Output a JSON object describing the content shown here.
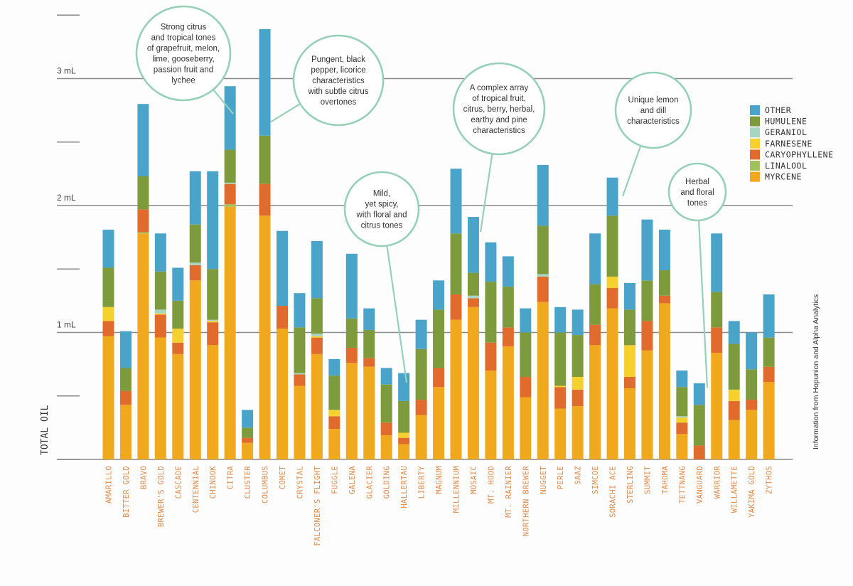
{
  "chart_data": {
    "type": "bar",
    "stacked": true,
    "ylabel": "TOTAL OIL",
    "ylim": [
      0,
      3.5
    ],
    "ytick_values": [
      1,
      2,
      3
    ],
    "ytick_labels": [
      "1 mL",
      "2 mL",
      "3 mL"
    ],
    "source": "Information from Hopunion and Alpha Analytics",
    "legend_position": "right",
    "components": [
      "Myrcene",
      "Linalool",
      "Caryophyllene",
      "Farnesene",
      "Geraniol",
      "Humulene",
      "Other"
    ],
    "legend": [
      {
        "key": "other",
        "label": "OTHER"
      },
      {
        "key": "humulene",
        "label": "HUMULENE"
      },
      {
        "key": "geraniol",
        "label": "GERANIOL"
      },
      {
        "key": "farnesene",
        "label": "FARNESENE"
      },
      {
        "key": "caryophyllene",
        "label": "CARYOPHYLLENE"
      },
      {
        "key": "linalool",
        "label": "LINALOOL"
      },
      {
        "key": "myrcene",
        "label": "MYRCENE"
      }
    ],
    "colors": {
      "myrcene": "#f0a81c",
      "linalool": "#a3c05e",
      "caryophyllene": "#e06b2c",
      "farnesene": "#f4d12e",
      "geraniol": "#a8d4c4",
      "humulene": "#7d9a3c",
      "other": "#4aa3c8"
    },
    "categories": [
      "AMARILLO",
      "BITTER GOLD",
      "BRAVO",
      "BREWER'S GOLD",
      "CASCADE",
      "CENTENNIAL",
      "CHINOOK",
      "CITRA",
      "CLUSTER",
      "COLUMBUS",
      "COMET",
      "CRYSTAL",
      "FALCONER'S FLIGHT",
      "FUGGLE",
      "GALENA",
      "GLACIER",
      "GOLDING",
      "HALLERTAU",
      "LIBERTY",
      "MAGNUM",
      "MILLENNIUM",
      "MOSAIC",
      "MT. HOOD",
      "MT. RAINIER",
      "NORTHERN BREWER",
      "NUGGET",
      "PERLE",
      "SAAZ",
      "SIMCOE",
      "SORACHI ACE",
      "STERLING",
      "SUMMIT",
      "TAHOMA",
      "TETTNANG",
      "VANGUARD",
      "WARRIOR",
      "WILLAMETTE",
      "YAKIMA GOLD",
      "ZYTHOS"
    ],
    "series": [
      {
        "name": "Myrcene",
        "key": "myrcene",
        "values": [
          0.97,
          0.43,
          1.78,
          0.96,
          0.83,
          1.41,
          0.9,
          1.99,
          0.13,
          1.92,
          1.03,
          0.58,
          0.83,
          0.24,
          0.76,
          0.73,
          0.19,
          0.12,
          0.35,
          0.57,
          1.1,
          1.2,
          0.7,
          0.89,
          0.49,
          1.24,
          0.4,
          0.42,
          0.9,
          1.19,
          0.56,
          0.86,
          1.23,
          0.2,
          0.0,
          0.84,
          0.31,
          0.39,
          0.61
        ]
      },
      {
        "name": "Linalool",
        "key": "linalool",
        "values": [
          0.0,
          0.0,
          0.01,
          0.0,
          0.0,
          0.0,
          0.0,
          0.02,
          0.0,
          0.0,
          0.0,
          0.0,
          0.0,
          0.0,
          0.0,
          0.0,
          0.0,
          0.0,
          0.0,
          0.0,
          0.0,
          0.0,
          0.0,
          0.0,
          0.0,
          0.0,
          0.0,
          0.0,
          0.0,
          0.0,
          0.0,
          0.0,
          0.0,
          0.0,
          0.0,
          0.0,
          0.0,
          0.0,
          0.0
        ]
      },
      {
        "name": "Caryophyllene",
        "key": "caryophyllene",
        "values": [
          0.12,
          0.11,
          0.18,
          0.18,
          0.09,
          0.12,
          0.18,
          0.16,
          0.04,
          0.25,
          0.18,
          0.09,
          0.13,
          0.1,
          0.12,
          0.07,
          0.1,
          0.05,
          0.12,
          0.15,
          0.2,
          0.07,
          0.22,
          0.15,
          0.16,
          0.2,
          0.17,
          0.13,
          0.16,
          0.16,
          0.09,
          0.23,
          0.06,
          0.09,
          0.11,
          0.2,
          0.15,
          0.08,
          0.12
        ]
      },
      {
        "name": "Farnesene",
        "key": "farnesene",
        "values": [
          0.11,
          0.0,
          0.0,
          0.01,
          0.11,
          0.0,
          0.01,
          0.0,
          0.0,
          0.0,
          0.0,
          0.0,
          0.01,
          0.05,
          0.0,
          0.0,
          0.0,
          0.04,
          0.0,
          0.0,
          0.0,
          0.0,
          0.0,
          0.0,
          0.0,
          0.0,
          0.01,
          0.1,
          0.0,
          0.09,
          0.25,
          0.0,
          0.0,
          0.04,
          0.0,
          0.0,
          0.09,
          0.0,
          0.0
        ]
      },
      {
        "name": "Geraniol",
        "key": "geraniol",
        "values": [
          0.0,
          0.0,
          0.0,
          0.03,
          0.0,
          0.02,
          0.01,
          0.01,
          0.0,
          0.0,
          0.0,
          0.01,
          0.02,
          0.0,
          0.0,
          0.0,
          0.0,
          0.0,
          0.0,
          0.0,
          0.0,
          0.02,
          0.0,
          0.0,
          0.0,
          0.02,
          0.0,
          0.0,
          0.0,
          0.0,
          0.0,
          0.0,
          0.0,
          0.01,
          0.0,
          0.0,
          0.0,
          0.0,
          0.0
        ]
      },
      {
        "name": "Humulene",
        "key": "humulene",
        "values": [
          0.31,
          0.18,
          0.26,
          0.3,
          0.22,
          0.3,
          0.4,
          0.26,
          0.08,
          0.38,
          0.0,
          0.36,
          0.28,
          0.27,
          0.23,
          0.22,
          0.3,
          0.25,
          0.4,
          0.46,
          0.48,
          0.18,
          0.48,
          0.32,
          0.35,
          0.38,
          0.42,
          0.33,
          0.32,
          0.48,
          0.28,
          0.32,
          0.2,
          0.23,
          0.32,
          0.28,
          0.36,
          0.24,
          0.23
        ]
      },
      {
        "name": "Other",
        "key": "other",
        "values": [
          0.3,
          0.29,
          0.57,
          0.3,
          0.26,
          0.42,
          0.77,
          0.5,
          0.14,
          0.84,
          0.59,
          0.27,
          0.45,
          0.13,
          0.51,
          0.17,
          0.13,
          0.22,
          0.23,
          0.23,
          0.51,
          0.44,
          0.31,
          0.24,
          0.19,
          0.48,
          0.2,
          0.2,
          0.4,
          0.3,
          0.21,
          0.48,
          0.32,
          0.13,
          0.17,
          0.46,
          0.18,
          0.29,
          0.34
        ]
      }
    ],
    "annotations": [
      {
        "target": "CITRA",
        "lines": [
          "Strong citrus",
          "and tropical tones",
          "of grapefruit, melon,",
          "lime, gooseberry,",
          "passion fruit and",
          "lychee"
        ]
      },
      {
        "target": "COLUMBUS",
        "lines": [
          "Pungent, black",
          "pepper, licorice",
          "characteristics",
          "with subtle citrus",
          "overtones"
        ]
      },
      {
        "target": "HALLERTAU",
        "lines": [
          "Mild,",
          "yet spicy,",
          "with floral and",
          "citrus tones"
        ]
      },
      {
        "target": "MOSAIC",
        "lines": [
          "A complex array",
          "of tropical fruit,",
          "citrus, berry, herbal,",
          "earthy and pine",
          "characteristics"
        ]
      },
      {
        "target": "SORACHI ACE",
        "lines": [
          "Unique lemon",
          "and dill",
          "characteristics"
        ]
      },
      {
        "target": "VANGUARD",
        "lines": [
          "Herbal",
          "and floral",
          "tones"
        ]
      }
    ]
  }
}
